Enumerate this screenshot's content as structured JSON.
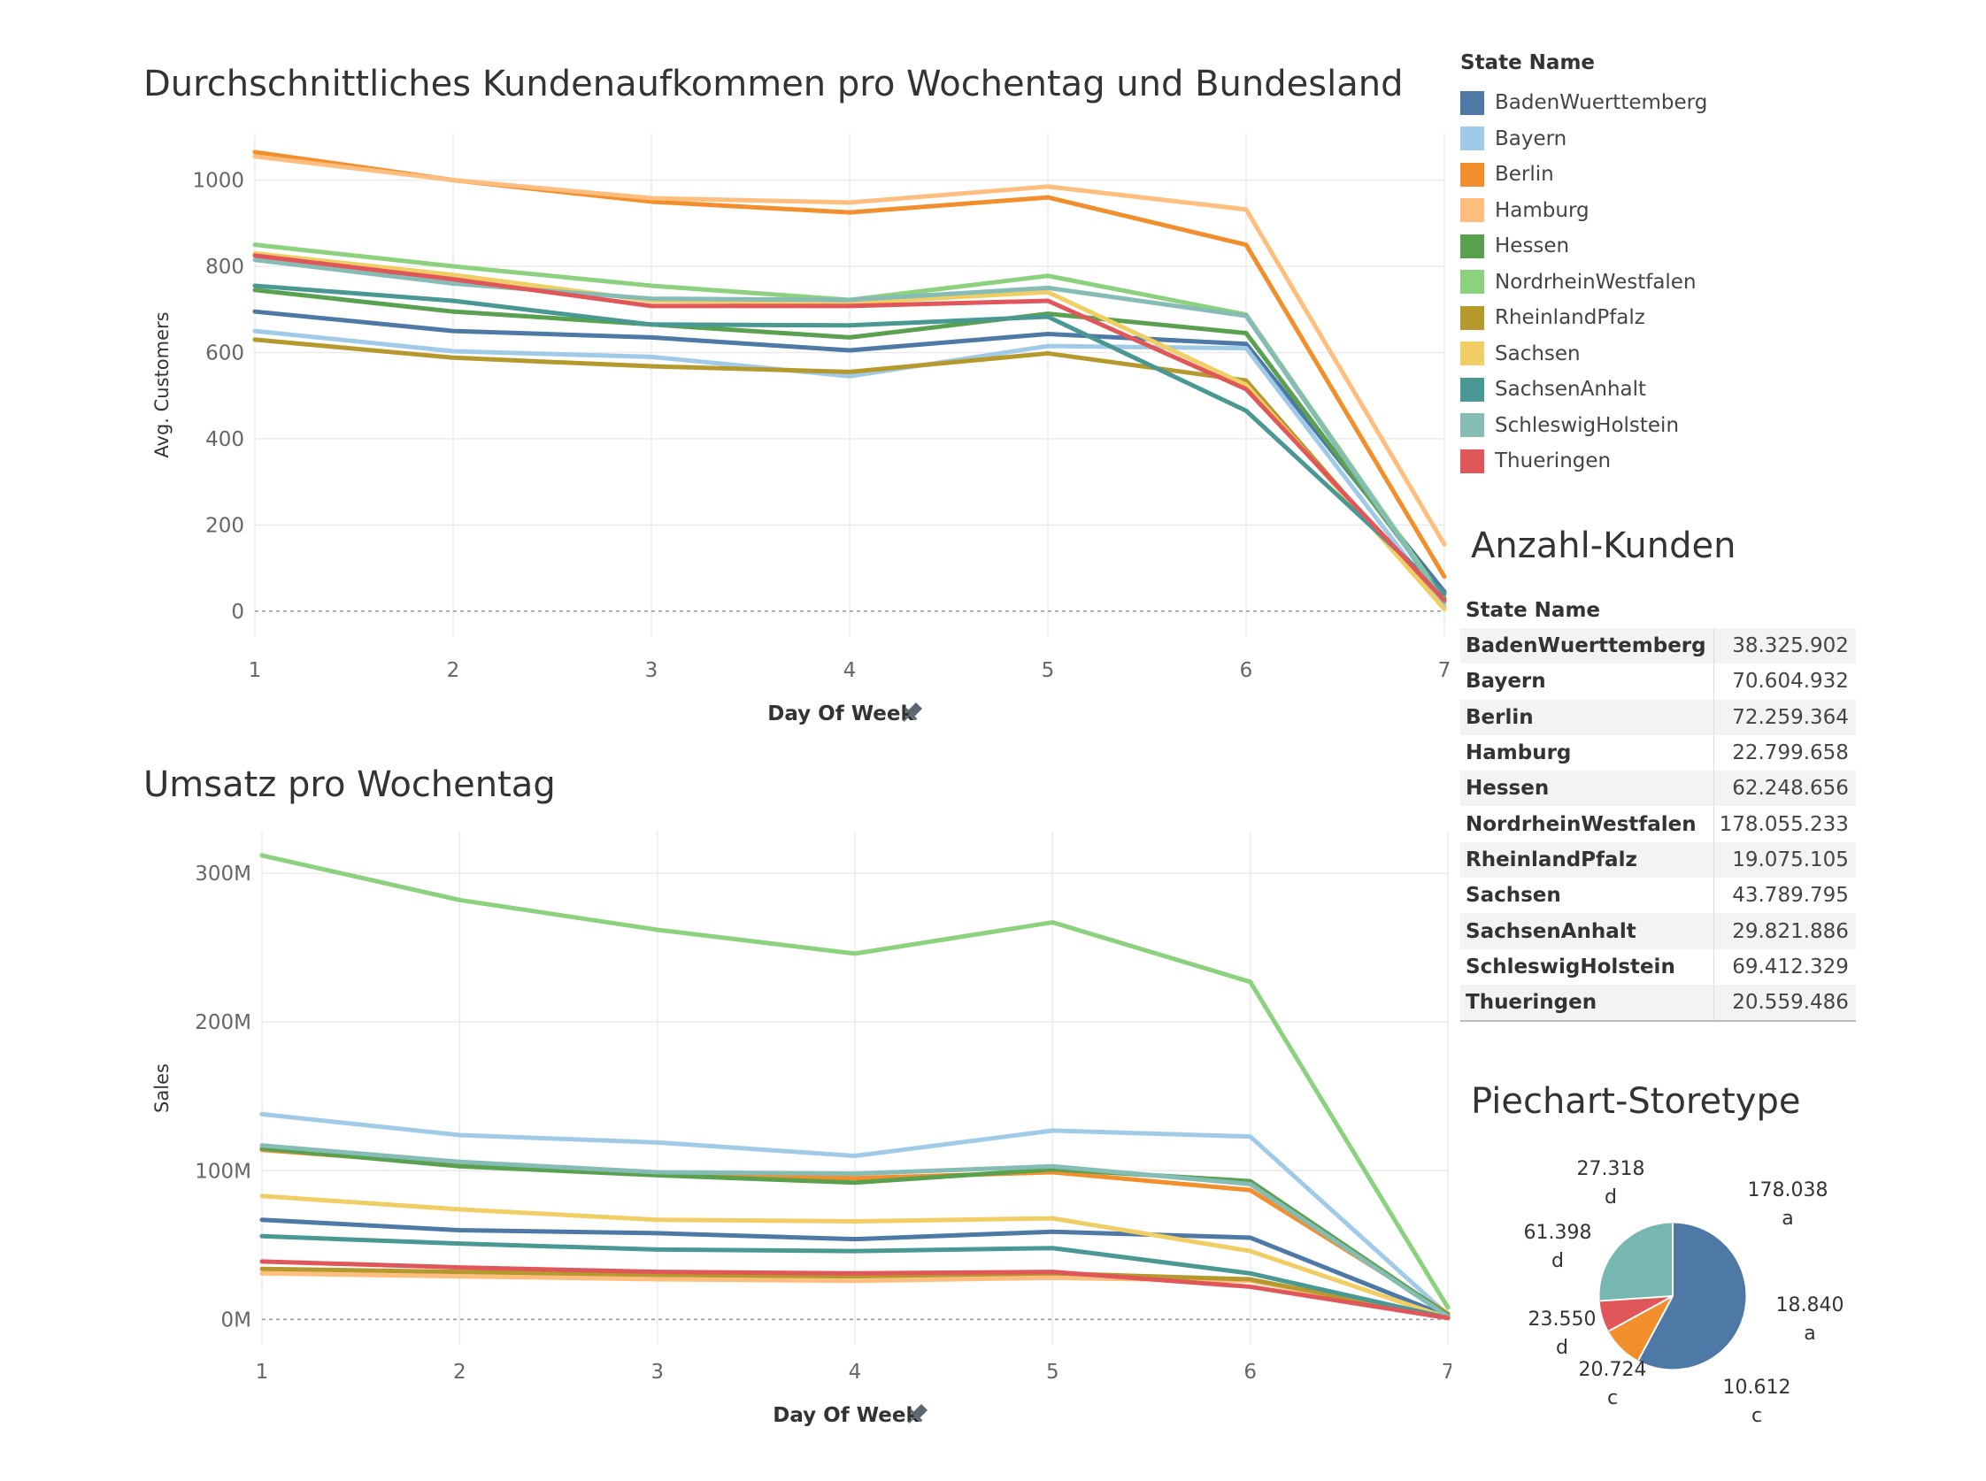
{
  "titles": {
    "customers": "Durchschnittliches Kundenaufkommen pro Wochentag und Bundesland",
    "sales": "Umsatz pro Wochentag",
    "table": "Anzahl-Kunden",
    "pie": "Piechart-Storetype"
  },
  "legend": {
    "title": "State Name",
    "items": [
      {
        "name": "BadenWuerttemberg",
        "color": "#4e79a7"
      },
      {
        "name": "Bayern",
        "color": "#a0cbe8"
      },
      {
        "name": "Berlin",
        "color": "#f28e2b"
      },
      {
        "name": "Hamburg",
        "color": "#ffbe7d"
      },
      {
        "name": "Hessen",
        "color": "#59a14f"
      },
      {
        "name": "NordrheinWestfalen",
        "color": "#8cd17d"
      },
      {
        "name": "RheinlandPfalz",
        "color": "#b6992d"
      },
      {
        "name": "Sachsen",
        "color": "#f1ce63"
      },
      {
        "name": "SachsenAnhalt",
        "color": "#499894"
      },
      {
        "name": "SchleswigHolstein",
        "color": "#86bcb6"
      },
      {
        "name": "Thueringen",
        "color": "#e15759"
      }
    ]
  },
  "table": {
    "header": "State Name",
    "rows": [
      {
        "name": "BadenWuerttemberg",
        "value": "38.325.902"
      },
      {
        "name": "Bayern",
        "value": "70.604.932"
      },
      {
        "name": "Berlin",
        "value": "72.259.364"
      },
      {
        "name": "Hamburg",
        "value": "22.799.658"
      },
      {
        "name": "Hessen",
        "value": "62.248.656"
      },
      {
        "name": "NordrheinWestfalen",
        "value": "178.055.233"
      },
      {
        "name": "RheinlandPfalz",
        "value": "19.075.105"
      },
      {
        "name": "Sachsen",
        "value": "43.789.795"
      },
      {
        "name": "SachsenAnhalt",
        "value": "29.821.886"
      },
      {
        "name": "SchleswigHolstein",
        "value": "69.412.329"
      },
      {
        "name": "Thueringen",
        "value": "20.559.486"
      }
    ]
  },
  "chart_data": [
    {
      "type": "line",
      "title": "Durchschnittliches Kundenaufkommen pro Wochentag und Bundesland",
      "xlabel": "Day Of Week",
      "ylabel": "Avg. Customers",
      "x": [
        1,
        2,
        3,
        4,
        5,
        6,
        7
      ],
      "xlim": [
        1,
        7
      ],
      "ylim": [
        -60,
        1110
      ],
      "yticks": [
        0,
        200,
        400,
        600,
        800,
        1000
      ],
      "ytick_labels": [
        "0",
        "200",
        "400",
        "600",
        "800",
        "1000"
      ],
      "grid": true,
      "legend": "right",
      "series": [
        {
          "name": "BadenWuerttemberg",
          "values": [
            695,
            650,
            635,
            605,
            643,
            620,
            45
          ]
        },
        {
          "name": "Bayern",
          "values": [
            650,
            603,
            590,
            545,
            615,
            610,
            10
          ]
        },
        {
          "name": "Berlin",
          "values": [
            1065,
            1000,
            950,
            925,
            960,
            850,
            80
          ]
        },
        {
          "name": "Hamburg",
          "values": [
            1055,
            1000,
            958,
            948,
            985,
            932,
            155
          ]
        },
        {
          "name": "Hessen",
          "values": [
            745,
            695,
            665,
            635,
            690,
            645,
            30
          ]
        },
        {
          "name": "NordrheinWestfalen",
          "values": [
            850,
            800,
            755,
            722,
            778,
            688,
            25
          ]
        },
        {
          "name": "RheinlandPfalz",
          "values": [
            630,
            588,
            568,
            555,
            598,
            535,
            5
          ]
        },
        {
          "name": "Sachsen",
          "values": [
            830,
            780,
            720,
            715,
            740,
            525,
            5
          ]
        },
        {
          "name": "SachsenAnhalt",
          "values": [
            755,
            720,
            665,
            663,
            683,
            465,
            40
          ]
        },
        {
          "name": "SchleswigHolstein",
          "values": [
            815,
            760,
            725,
            722,
            750,
            685,
            20
          ]
        },
        {
          "name": "Thueringen",
          "values": [
            825,
            770,
            708,
            708,
            720,
            515,
            25
          ]
        }
      ]
    },
    {
      "type": "line",
      "title": "Umsatz pro Wochentag",
      "xlabel": "Day Of Week",
      "ylabel": "Sales",
      "x": [
        1,
        2,
        3,
        4,
        5,
        6,
        7
      ],
      "xlim": [
        1,
        7
      ],
      "ylim": [
        -17000000,
        328000000
      ],
      "yticks": [
        0,
        100000000,
        200000000,
        300000000
      ],
      "ytick_labels": [
        "0M",
        "100M",
        "200M",
        "300M"
      ],
      "grid": true,
      "series": [
        {
          "name": "BadenWuerttemberg",
          "values": [
            67000000,
            60000000,
            58000000,
            54000000,
            59000000,
            55000000,
            2000000
          ]
        },
        {
          "name": "Bayern",
          "values": [
            138000000,
            124000000,
            119000000,
            110000000,
            127000000,
            123000000,
            3000000
          ]
        },
        {
          "name": "Berlin",
          "values": [
            114000000,
            104000000,
            98000000,
            95000000,
            99000000,
            87000000,
            4000000
          ]
        },
        {
          "name": "Hamburg",
          "values": [
            31000000,
            29000000,
            27000000,
            26000000,
            28000000,
            26000000,
            1000000
          ]
        },
        {
          "name": "Hessen",
          "values": [
            115000000,
            103000000,
            97000000,
            92000000,
            101000000,
            93000000,
            3000000
          ]
        },
        {
          "name": "NordrheinWestfalen",
          "values": [
            312000000,
            282000000,
            262000000,
            246000000,
            267000000,
            227000000,
            8000000
          ]
        },
        {
          "name": "RheinlandPfalz",
          "values": [
            34000000,
            32000000,
            30000000,
            29000000,
            31000000,
            27000000,
            1000000
          ]
        },
        {
          "name": "Sachsen",
          "values": [
            83000000,
            74000000,
            67000000,
            66000000,
            68000000,
            46000000,
            1000000
          ]
        },
        {
          "name": "SachsenAnhalt",
          "values": [
            56000000,
            51000000,
            47000000,
            46000000,
            48000000,
            31000000,
            1000000
          ]
        },
        {
          "name": "SchleswigHolstein",
          "values": [
            117000000,
            106000000,
            99000000,
            98000000,
            103000000,
            91000000,
            2000000
          ]
        },
        {
          "name": "Thueringen",
          "values": [
            39000000,
            35000000,
            32000000,
            31000000,
            32000000,
            22000000,
            1000000
          ]
        }
      ]
    },
    {
      "type": "pie",
      "title": "Piechart-Storetype",
      "slices": [
        {
          "value": 178.038,
          "label": "178.038",
          "category": "a",
          "color": "#4e79a7"
        },
        {
          "value": 18.84,
          "label": "18.840",
          "category": "a",
          "color": "#4e79a7"
        },
        {
          "value": 10.612,
          "label": "10.612",
          "category": "c",
          "color": "#f28e2b"
        },
        {
          "value": 20.724,
          "label": "20.724",
          "category": "c",
          "color": "#f28e2b"
        },
        {
          "value": 23.55,
          "label": "23.550",
          "category": "d",
          "color": "#e15759"
        },
        {
          "value": 61.398,
          "label": "61.398",
          "category": "d",
          "color": "#76b7b2"
        },
        {
          "value": 27.318,
          "label": "27.318",
          "category": "d",
          "color": "#76b7b2"
        }
      ]
    }
  ]
}
